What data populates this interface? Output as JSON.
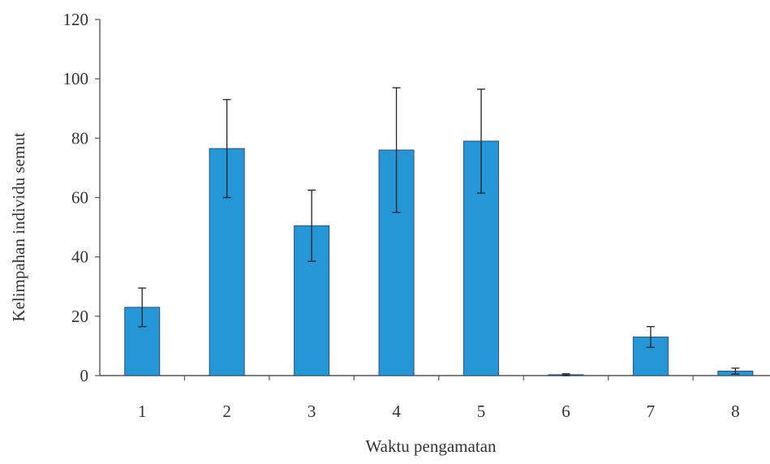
{
  "chart_data": {
    "type": "bar",
    "title": "",
    "xlabel": "Waktu pengamatan",
    "ylabel": "Kelimpahan individu semut",
    "categories": [
      "1",
      "2",
      "3",
      "4",
      "5",
      "6",
      "7",
      "8"
    ],
    "values": [
      23,
      76.5,
      50.5,
      76,
      79,
      0.3,
      13,
      1.5
    ],
    "error": [
      6.5,
      16.5,
      12,
      21,
      17.5,
      0.3,
      3.5,
      1
    ],
    "ylim": [
      0,
      120
    ],
    "yticks": [
      "0",
      "20",
      "40",
      "60",
      "80",
      "100",
      "120"
    ],
    "bar_color": "#2596d6",
    "grid": false,
    "legend": false
  }
}
